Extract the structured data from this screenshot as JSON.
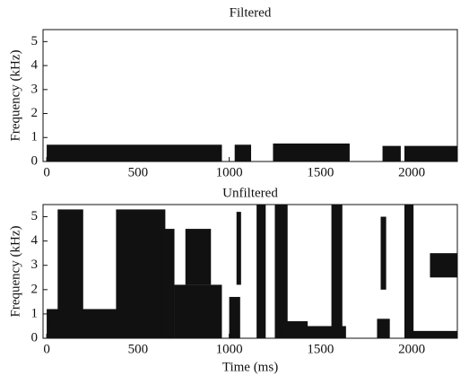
{
  "chart_data": [
    {
      "type": "spectrogram",
      "title": "Filtered",
      "ylabel": "Frequency (kHz)",
      "color": "#111111",
      "xlim": [
        -20,
        2250
      ],
      "ylim": [
        0,
        5.5
      ],
      "xticks": [
        0,
        500,
        1000,
        1500,
        2000
      ],
      "yticks": [
        0,
        1,
        2,
        3,
        4,
        5
      ],
      "regions": [
        {
          "x": [
            0,
            960
          ],
          "y": [
            0,
            0.7
          ]
        },
        {
          "x": [
            1030,
            1120
          ],
          "y": [
            0,
            0.7
          ]
        },
        {
          "x": [
            1240,
            1660
          ],
          "y": [
            0,
            0.75
          ]
        },
        {
          "x": [
            1840,
            1940
          ],
          "y": [
            0,
            0.65
          ]
        },
        {
          "x": [
            1960,
            2260
          ],
          "y": [
            0,
            0.65
          ]
        }
      ]
    },
    {
      "type": "spectrogram",
      "title": "Unfiltered",
      "ylabel": "Frequency (kHz)",
      "xlabel": "Time (ms)",
      "color": "#111111",
      "xlim": [
        -20,
        2250
      ],
      "ylim": [
        0,
        5.5
      ],
      "xticks": [
        0,
        500,
        1000,
        1500,
        2000
      ],
      "yticks": [
        0,
        1,
        2,
        3,
        4,
        5
      ],
      "regions": [
        {
          "x": [
            0,
            400
          ],
          "y": [
            0,
            1.2
          ]
        },
        {
          "x": [
            60,
            200
          ],
          "y": [
            0,
            5.3
          ]
        },
        {
          "x": [
            380,
            650
          ],
          "y": [
            0,
            5.3
          ]
        },
        {
          "x": [
            620,
            700
          ],
          "y": [
            0,
            4.5
          ]
        },
        {
          "x": [
            700,
            960
          ],
          "y": [
            0,
            2.2
          ]
        },
        {
          "x": [
            760,
            900
          ],
          "y": [
            2.2,
            4.5
          ]
        },
        {
          "x": [
            1000,
            1060
          ],
          "y": [
            0,
            1.7
          ]
        },
        {
          "x": [
            1040,
            1065
          ],
          "y": [
            2.2,
            5.2
          ]
        },
        {
          "x": [
            1150,
            1200
          ],
          "y": [
            0,
            5.5
          ]
        },
        {
          "x": [
            1250,
            1320
          ],
          "y": [
            0,
            5.5
          ]
        },
        {
          "x": [
            1280,
            1430
          ],
          "y": [
            0,
            0.7
          ]
        },
        {
          "x": [
            1400,
            1640
          ],
          "y": [
            0,
            0.5
          ]
        },
        {
          "x": [
            1560,
            1620
          ],
          "y": [
            0,
            5.5
          ]
        },
        {
          "x": [
            1810,
            1880
          ],
          "y": [
            0,
            0.8
          ]
        },
        {
          "x": [
            1830,
            1860
          ],
          "y": [
            2,
            5
          ]
        },
        {
          "x": [
            1960,
            2010
          ],
          "y": [
            0,
            5.5
          ]
        },
        {
          "x": [
            1960,
            2250
          ],
          "y": [
            0,
            0.3
          ]
        },
        {
          "x": [
            2100,
            2250
          ],
          "y": [
            2.5,
            3.5
          ]
        }
      ]
    }
  ]
}
